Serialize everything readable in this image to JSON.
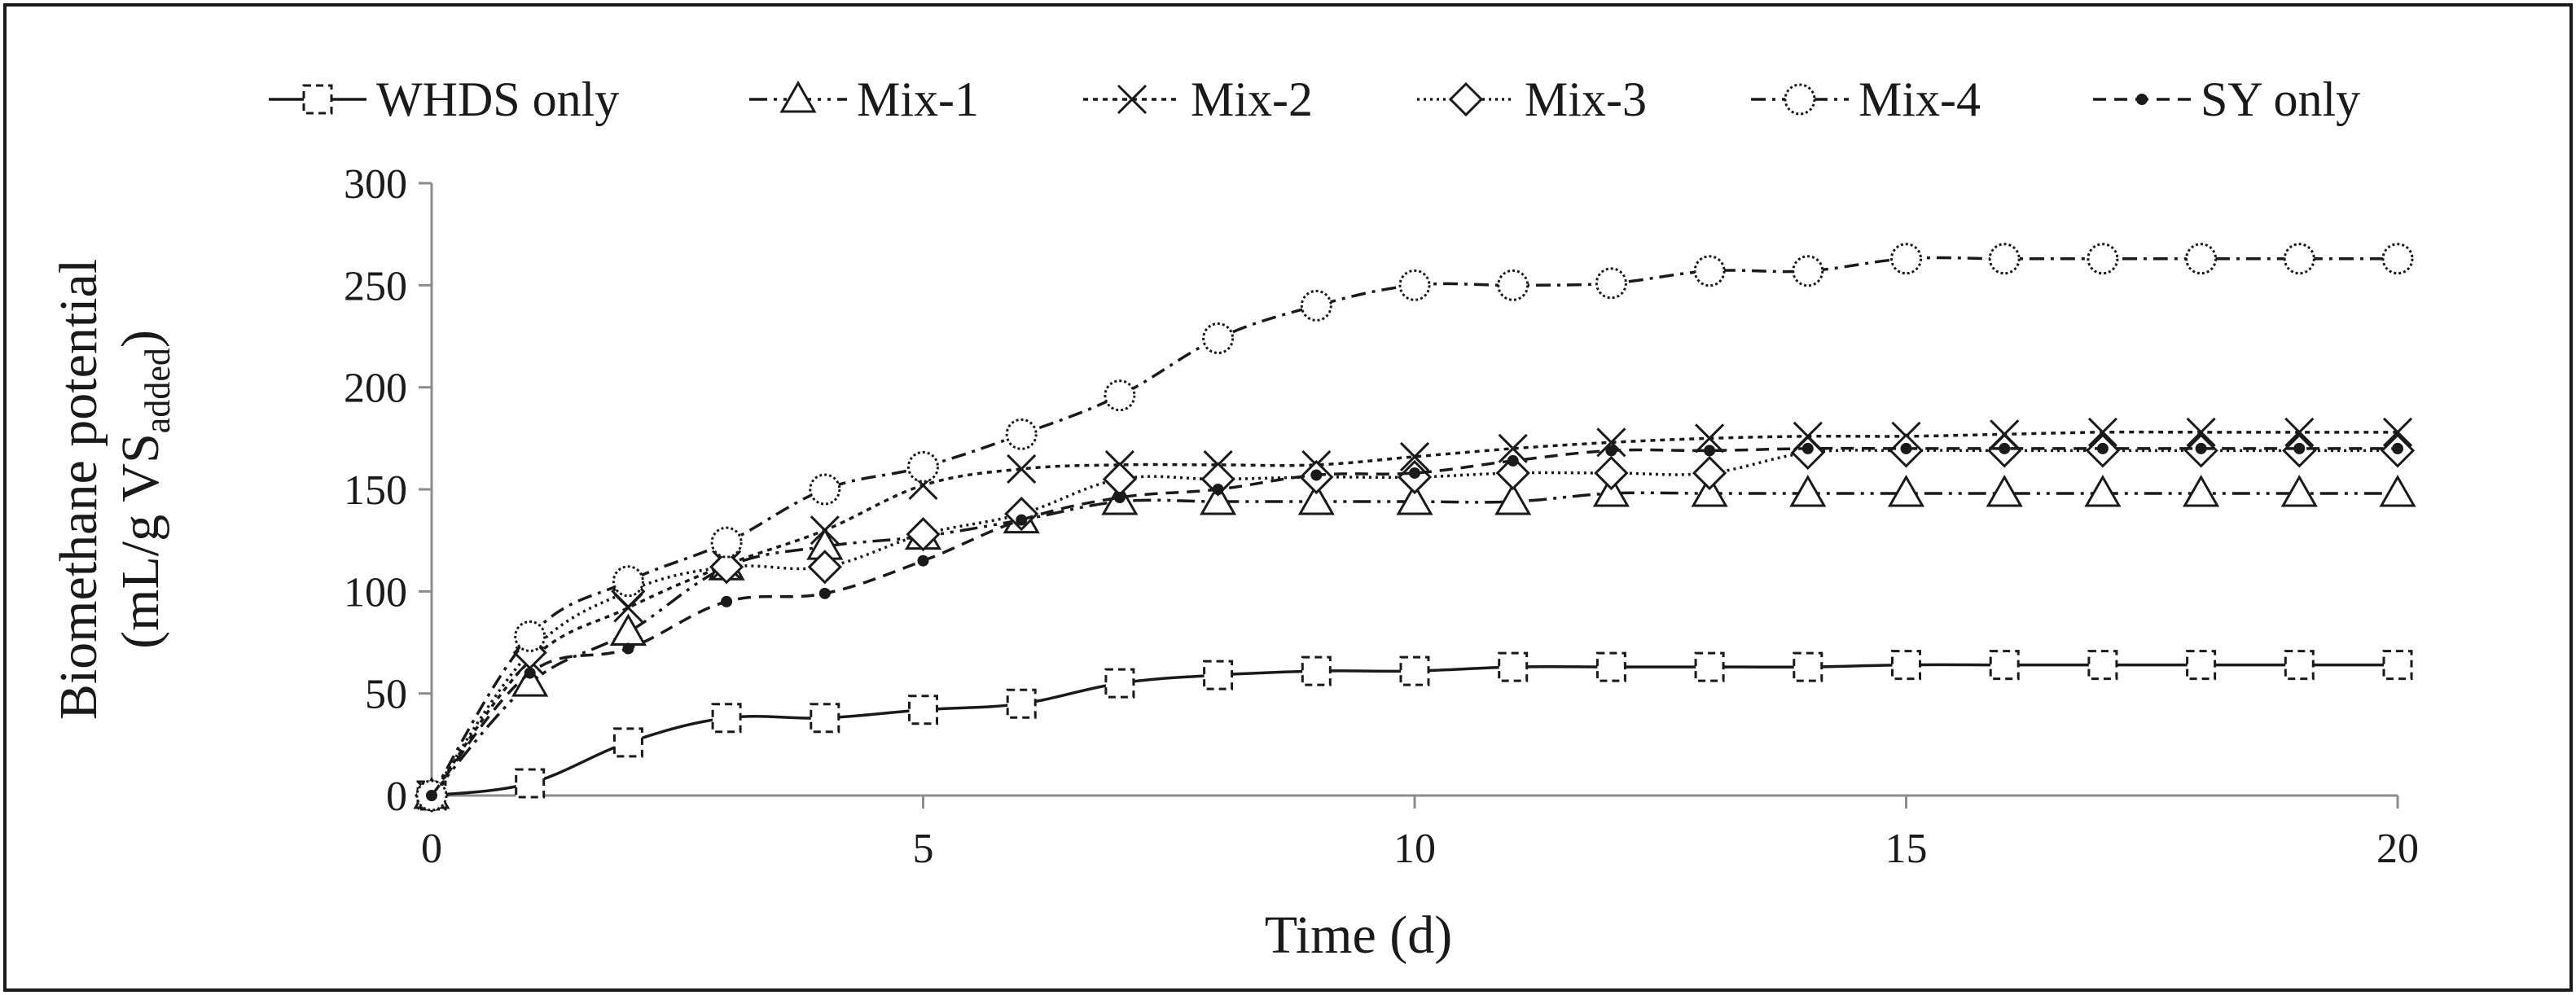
{
  "chart_data": {
    "type": "line",
    "title": "",
    "xlabel": "Time (d)",
    "ylabel_main": "Biomethane potential",
    "ylabel_unit_prefix": "(mL/g VS",
    "ylabel_unit_sub": "added",
    "ylabel_unit_suffix": ")",
    "xlim": [
      0,
      20
    ],
    "ylim": [
      0,
      300
    ],
    "x_ticks": [
      0,
      5,
      10,
      15,
      20
    ],
    "y_ticks": [
      0,
      50,
      100,
      150,
      200,
      250,
      300
    ],
    "grid": false,
    "legend_position": "top",
    "x": [
      0,
      1,
      2,
      3,
      4,
      5,
      6,
      7,
      8,
      9,
      10,
      11,
      12,
      13,
      14,
      15,
      16,
      17,
      18,
      19,
      20
    ],
    "series": [
      {
        "name": "WHDS only",
        "marker": "square",
        "dash": "",
        "values": [
          0,
          6,
          26,
          38,
          38,
          42,
          45,
          55,
          59,
          61,
          61,
          63,
          63,
          63,
          63,
          64,
          64,
          64,
          64,
          64,
          64
        ]
      },
      {
        "name": "Mix-1",
        "marker": "triangle",
        "dash": "22,8,4,8,4,8",
        "values": [
          0,
          55,
          80,
          112,
          122,
          127,
          135,
          144,
          144,
          144,
          144,
          144,
          148,
          148,
          148,
          148,
          148,
          148,
          148,
          148,
          148
        ]
      },
      {
        "name": "Mix-2",
        "marker": "x",
        "dash": "6,6",
        "values": [
          0,
          66,
          92,
          113,
          130,
          152,
          160,
          162,
          162,
          162,
          166,
          170,
          173,
          175,
          176,
          176,
          177,
          178,
          178,
          178,
          178
        ]
      },
      {
        "name": "Mix-3",
        "marker": "diamond",
        "dash": "3,5",
        "values": [
          0,
          70,
          100,
          112,
          112,
          128,
          138,
          155,
          155,
          156,
          156,
          158,
          158,
          158,
          168,
          169,
          169,
          169,
          169,
          169,
          169
        ]
      },
      {
        "name": "Mix-4",
        "marker": "circle",
        "dash": "18,8,4,8",
        "values": [
          0,
          78,
          105,
          124,
          150,
          161,
          177,
          196,
          224,
          240,
          250,
          250,
          251,
          257,
          257,
          263,
          263,
          263,
          263,
          263,
          263
        ]
      },
      {
        "name": "SY only",
        "marker": "dot",
        "dash": "16,10",
        "values": [
          0,
          60,
          72,
          95,
          99,
          115,
          135,
          146,
          150,
          157,
          158,
          164,
          169,
          169,
          170,
          170,
          170,
          170,
          170,
          170,
          170
        ]
      }
    ]
  }
}
